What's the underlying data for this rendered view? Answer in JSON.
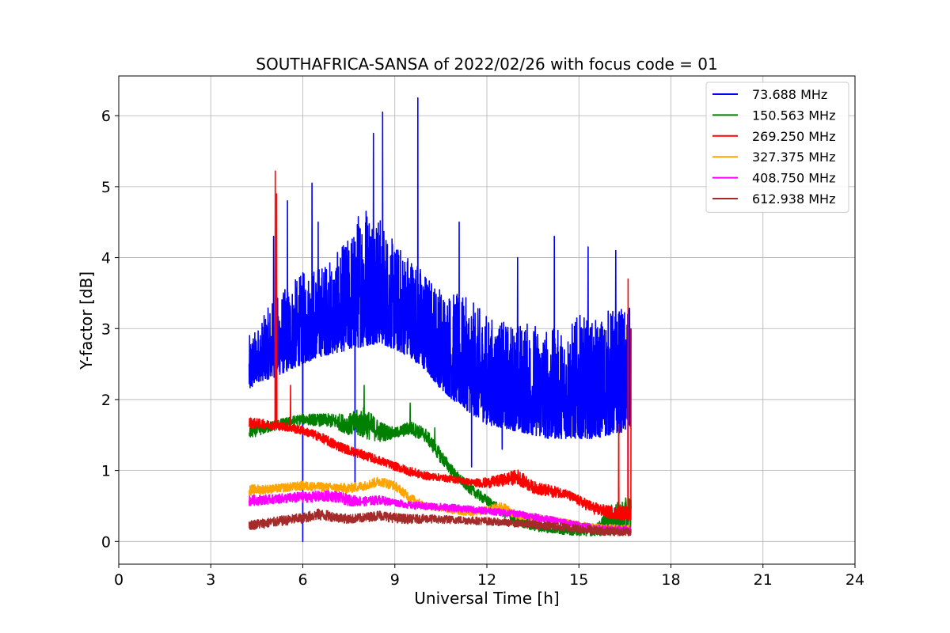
{
  "chart_data": {
    "type": "line",
    "title": "SOUTHAFRICA-SANSA of 2022/02/26 with focus code = 01",
    "xlabel": "Universal Time [h]",
    "ylabel": "Y-factor [dB]",
    "xlim": [
      0,
      24
    ],
    "ylim": [
      -0.32,
      6.56
    ],
    "xticks": [
      0,
      3,
      6,
      9,
      12,
      15,
      18,
      21,
      24
    ],
    "yticks": [
      0,
      1,
      2,
      3,
      4,
      5,
      6
    ],
    "grid": true,
    "legend_position": "top-right",
    "series": [
      {
        "name": "73.688 MHz",
        "label": " 73.688 MHz",
        "color": "#0000ff",
        "x": [
          4.25,
          4.5,
          5.0,
          5.5,
          6.0,
          6.5,
          7.0,
          7.5,
          8.0,
          8.5,
          9.0,
          9.5,
          10.0,
          10.5,
          11.0,
          11.5,
          12.0,
          12.5,
          13.0,
          13.5,
          14.0,
          14.5,
          15.0,
          15.5,
          16.0,
          16.5,
          16.7
        ],
        "base": [
          2.1,
          2.25,
          2.3,
          2.4,
          2.5,
          2.6,
          2.65,
          2.7,
          2.75,
          2.8,
          2.7,
          2.6,
          2.4,
          2.15,
          1.95,
          1.8,
          1.65,
          1.6,
          1.55,
          1.5,
          1.45,
          1.45,
          1.45,
          1.45,
          1.5,
          1.55,
          1.6
        ],
        "peak": [
          2.9,
          3.0,
          3.4,
          3.6,
          3.8,
          3.9,
          4.0,
          4.3,
          4.9,
          4.6,
          4.2,
          4.1,
          3.8,
          3.6,
          3.5,
          3.4,
          3.2,
          3.1,
          3.1,
          3.1,
          3.0,
          3.0,
          3.2,
          3.1,
          3.3,
          3.3,
          3.3
        ],
        "spikes": [
          [
            5.05,
            4.3
          ],
          [
            5.5,
            4.8
          ],
          [
            6.0,
            0.0
          ],
          [
            6.3,
            5.05
          ],
          [
            6.5,
            4.5
          ],
          [
            7.7,
            0.8
          ],
          [
            8.3,
            5.75
          ],
          [
            8.6,
            6.05
          ],
          [
            9.75,
            6.25
          ],
          [
            11.1,
            4.5
          ],
          [
            11.5,
            1.05
          ],
          [
            12.5,
            1.3
          ],
          [
            13.0,
            4.0
          ],
          [
            14.2,
            4.3
          ],
          [
            15.3,
            4.15
          ],
          [
            16.2,
            4.1
          ],
          [
            16.6,
            0.3
          ]
        ]
      },
      {
        "name": "150.563 MHz",
        "color": "#008000",
        "x": [
          4.25,
          5.0,
          6.0,
          7.0,
          7.5,
          8.0,
          8.5,
          9.0,
          9.5,
          10.0,
          10.5,
          11.0,
          11.5,
          12.0,
          12.5,
          13.0,
          13.5,
          14.0,
          14.5,
          15.0,
          15.5,
          16.0,
          16.5,
          16.7
        ],
        "base": [
          1.45,
          1.55,
          1.65,
          1.6,
          1.5,
          1.45,
          1.4,
          1.45,
          1.5,
          1.4,
          1.1,
          0.85,
          0.65,
          0.5,
          0.35,
          0.22,
          0.15,
          0.12,
          0.1,
          0.08,
          0.08,
          0.08,
          0.08,
          0.1
        ],
        "peak": [
          1.6,
          1.7,
          1.8,
          1.8,
          1.8,
          1.9,
          1.7,
          1.6,
          1.7,
          1.6,
          1.3,
          1.0,
          0.8,
          0.65,
          0.5,
          0.35,
          0.3,
          0.25,
          0.2,
          0.2,
          0.2,
          0.5,
          0.6,
          0.7
        ],
        "spikes": [
          [
            8.0,
            2.2
          ],
          [
            9.5,
            1.95
          ],
          [
            10.3,
            1.6
          ],
          [
            16.3,
            1.6
          ]
        ]
      },
      {
        "name": "269.250 MHz",
        "color": "#ff0000",
        "x": [
          4.25,
          5.0,
          5.5,
          6.0,
          6.5,
          7.0,
          7.5,
          8.0,
          8.5,
          9.0,
          9.5,
          10.0,
          10.5,
          11.0,
          11.5,
          12.0,
          12.5,
          13.0,
          13.5,
          14.0,
          14.5,
          15.0,
          15.5,
          16.0,
          16.5,
          16.7
        ],
        "base": [
          1.6,
          1.58,
          1.55,
          1.5,
          1.42,
          1.3,
          1.22,
          1.15,
          1.08,
          1.0,
          0.92,
          0.87,
          0.85,
          0.82,
          0.78,
          0.75,
          0.78,
          0.8,
          0.68,
          0.62,
          0.62,
          0.5,
          0.38,
          0.32,
          0.3,
          0.3
        ],
        "peak": [
          1.75,
          1.7,
          1.68,
          1.62,
          1.55,
          1.45,
          1.35,
          1.28,
          1.2,
          1.12,
          1.05,
          0.98,
          0.95,
          0.92,
          0.88,
          0.9,
          0.95,
          1.02,
          0.85,
          0.8,
          0.75,
          0.65,
          0.55,
          0.5,
          0.5,
          0.5
        ],
        "spikes": [
          [
            5.1,
            5.22
          ],
          [
            5.15,
            4.9
          ],
          [
            5.6,
            2.2
          ],
          [
            16.3,
            1.65
          ],
          [
            16.6,
            3.7
          ],
          [
            16.7,
            3.0
          ]
        ]
      },
      {
        "name": "327.375 MHz",
        "color": "#ffa500",
        "x": [
          4.25,
          5.0,
          6.0,
          7.0,
          7.5,
          8.0,
          8.5,
          9.0,
          9.5,
          10.0,
          10.5,
          11.0,
          11.5,
          12.0,
          12.5,
          13.0,
          13.5,
          14.0,
          14.5,
          15.0,
          15.5,
          16.0,
          16.5,
          16.7
        ],
        "base": [
          0.65,
          0.68,
          0.72,
          0.7,
          0.68,
          0.72,
          0.78,
          0.72,
          0.55,
          0.45,
          0.42,
          0.38,
          0.36,
          0.38,
          0.42,
          0.3,
          0.28,
          0.26,
          0.22,
          0.18,
          0.15,
          0.14,
          0.13,
          0.13
        ],
        "peak": [
          0.8,
          0.8,
          0.85,
          0.82,
          0.82,
          0.85,
          0.92,
          0.85,
          0.68,
          0.55,
          0.52,
          0.48,
          0.46,
          0.5,
          0.56,
          0.42,
          0.4,
          0.36,
          0.32,
          0.28,
          0.25,
          0.24,
          0.23,
          0.23
        ],
        "spikes": []
      },
      {
        "name": "408.750 MHz",
        "color": "#ff00ff",
        "x": [
          4.25,
          5.0,
          6.0,
          7.0,
          7.5,
          8.0,
          8.5,
          9.0,
          9.5,
          10.0,
          10.5,
          11.0,
          11.5,
          12.0,
          12.5,
          13.0,
          13.5,
          14.0,
          14.5,
          15.0,
          15.5,
          16.0,
          16.5,
          16.7
        ],
        "base": [
          0.5,
          0.53,
          0.55,
          0.56,
          0.5,
          0.5,
          0.52,
          0.5,
          0.46,
          0.44,
          0.43,
          0.42,
          0.4,
          0.38,
          0.36,
          0.34,
          0.3,
          0.26,
          0.22,
          0.18,
          0.14,
          0.12,
          0.12,
          0.12
        ],
        "peak": [
          0.65,
          0.66,
          0.7,
          0.72,
          0.66,
          0.63,
          0.65,
          0.6,
          0.56,
          0.55,
          0.54,
          0.52,
          0.5,
          0.48,
          0.46,
          0.44,
          0.4,
          0.36,
          0.32,
          0.28,
          0.24,
          0.22,
          0.22,
          0.22
        ],
        "spikes": []
      },
      {
        "name": "612.938 MHz",
        "color": "#a52a2a",
        "x": [
          4.25,
          5.0,
          6.0,
          6.5,
          7.0,
          7.5,
          8.0,
          8.5,
          9.0,
          9.5,
          10.0,
          10.5,
          11.0,
          11.5,
          12.0,
          12.5,
          13.0,
          13.5,
          14.0,
          14.5,
          15.0,
          15.5,
          16.0,
          16.5,
          16.7
        ],
        "base": [
          0.16,
          0.2,
          0.26,
          0.3,
          0.28,
          0.25,
          0.27,
          0.3,
          0.26,
          0.25,
          0.26,
          0.25,
          0.25,
          0.24,
          0.23,
          0.22,
          0.2,
          0.18,
          0.16,
          0.14,
          0.12,
          0.1,
          0.08,
          0.08,
          0.08
        ],
        "peak": [
          0.3,
          0.34,
          0.4,
          0.46,
          0.42,
          0.38,
          0.4,
          0.44,
          0.4,
          0.38,
          0.38,
          0.37,
          0.36,
          0.35,
          0.34,
          0.32,
          0.3,
          0.3,
          0.28,
          0.26,
          0.24,
          0.22,
          0.2,
          0.2,
          0.2
        ],
        "spikes": []
      }
    ]
  }
}
